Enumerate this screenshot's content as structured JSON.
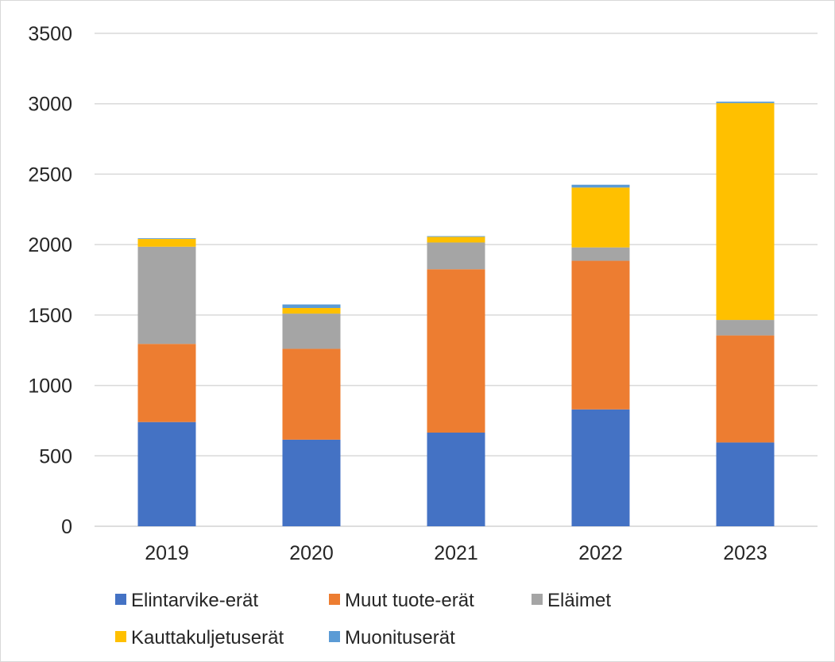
{
  "chart_data": {
    "type": "bar",
    "stacked": true,
    "categories": [
      "2019",
      "2020",
      "2021",
      "2022",
      "2023"
    ],
    "series": [
      {
        "name": "Elintarvike-erät",
        "color": "#4472C4",
        "values": [
          740,
          615,
          665,
          830,
          595
        ]
      },
      {
        "name": "Muut tuote-erät",
        "color": "#ED7D31",
        "values": [
          555,
          645,
          1160,
          1055,
          760
        ]
      },
      {
        "name": "Eläimet",
        "color": "#A5A5A5",
        "values": [
          690,
          250,
          190,
          95,
          110
        ]
      },
      {
        "name": "Kauttakuljetuserät",
        "color": "#FFC000",
        "values": [
          55,
          40,
          40,
          425,
          1540
        ]
      },
      {
        "name": "Muonituserät",
        "color": "#5B9BD5",
        "values": [
          5,
          25,
          5,
          20,
          10
        ]
      }
    ],
    "ylim": [
      0,
      3500
    ],
    "yticks": [
      0,
      500,
      1000,
      1500,
      2000,
      2500,
      3000,
      3500
    ],
    "grid": true,
    "legend": "bottom"
  }
}
